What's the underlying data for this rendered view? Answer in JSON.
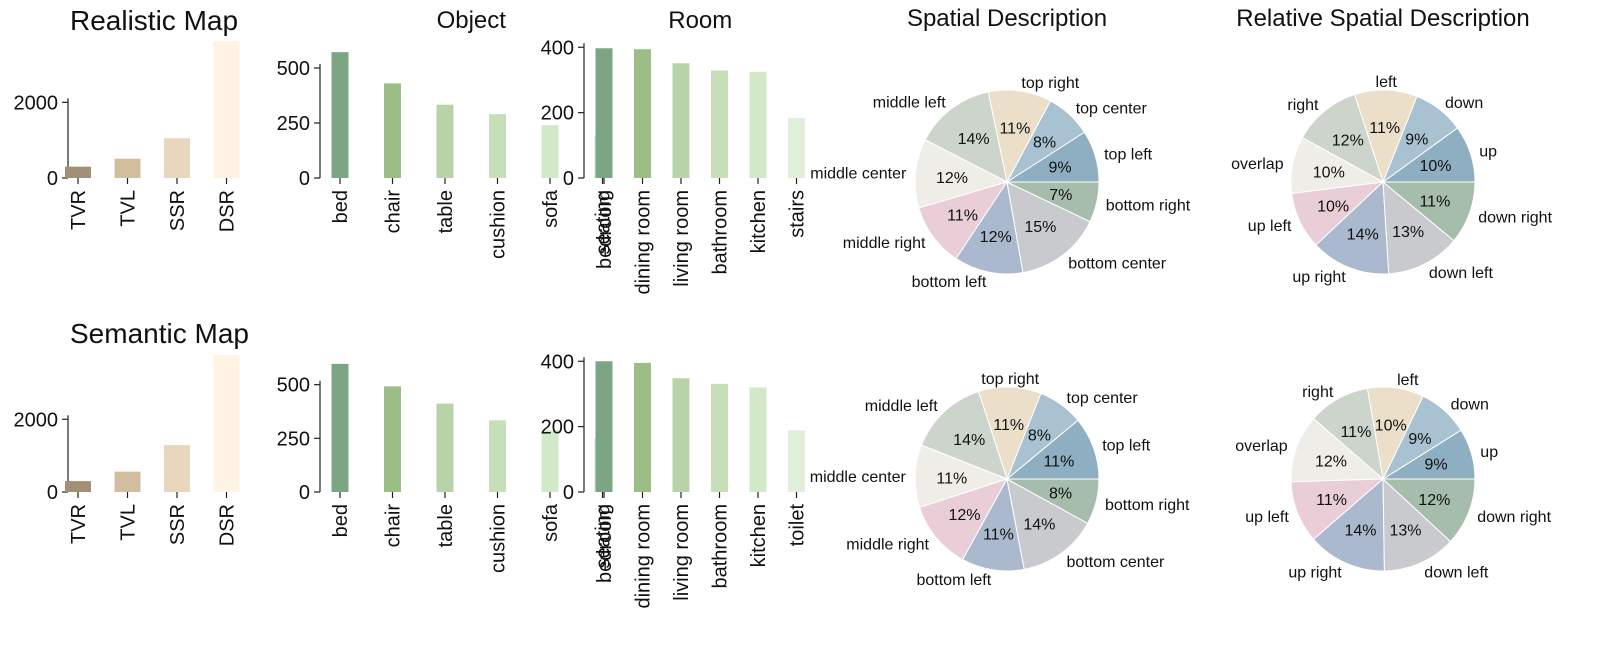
{
  "colors": {
    "group_bars": [
      "#a38f76",
      "#d2bd9e",
      "#e8d6bd",
      "#fff3e3"
    ],
    "green_bars": [
      "#7ba583",
      "#9bbd86",
      "#b9d3a8",
      "#c7dfb9",
      "#d3e8c7",
      "#e1eed9"
    ],
    "pie": {
      "top left": "#8eafc2",
      "top center": "#a9c2d1",
      "top right": "#ecdfca",
      "middle left": "#ccd4cc",
      "middle center": "#efede7",
      "middle right": "#e9ced7",
      "bottom left": "#abb9cf",
      "bottom center": "#c9cacd",
      "bottom right": "#a7bdab",
      "up": "#8eafc2",
      "down": "#a9c2d1",
      "left": "#ecdfca",
      "right": "#ccd4cc",
      "overlap": "#efede7",
      "up left": "#e9ced7",
      "up right": "#abb9cf",
      "down left": "#c9cacd",
      "down right": "#a7bdab"
    }
  },
  "chart_data": [
    {
      "type": "bar",
      "row": 0,
      "col": 0,
      "title": "Realistic Map",
      "categories": [
        "TVR",
        "TVL",
        "SSR",
        "DSR"
      ],
      "values": [
        300,
        510,
        1050,
        3620
      ],
      "ylim": [
        0,
        3700
      ],
      "yticks": [
        0,
        2000
      ],
      "grid": false
    },
    {
      "type": "bar",
      "row": 0,
      "col": 1,
      "title": "Object",
      "categories": [
        "bed",
        "chair",
        "table",
        "cushion",
        "sofa",
        "seating"
      ],
      "values": [
        572,
        430,
        333,
        290,
        240,
        192
      ],
      "ylim": [
        0,
        600
      ],
      "yticks": [
        0,
        250,
        500
      ],
      "grid": false
    },
    {
      "type": "bar",
      "row": 0,
      "col": 2,
      "title": "Room",
      "categories": [
        "bedroom",
        "dining room",
        "living room",
        "bathroom",
        "kitchen",
        "stairs"
      ],
      "values": [
        397,
        394,
        351,
        329,
        325,
        183
      ],
      "ylim": [
        0,
        410
      ],
      "yticks": [
        0,
        200,
        400
      ],
      "grid": false
    },
    {
      "type": "pie",
      "row": 0,
      "col": 3,
      "title": "Spatial Description",
      "labels": [
        "top left",
        "top center",
        "top right",
        "middle left",
        "middle center",
        "middle right",
        "bottom left",
        "bottom center",
        "bottom right"
      ],
      "values": [
        9,
        8,
        11,
        14,
        12,
        11,
        12,
        15,
        7
      ]
    },
    {
      "type": "pie",
      "row": 0,
      "col": 4,
      "title": "Relative Spatial Description",
      "labels": [
        "up",
        "down",
        "left",
        "right",
        "overlap",
        "up left",
        "up right",
        "down left",
        "down right"
      ],
      "values": [
        10,
        9,
        11,
        12,
        10,
        10,
        14,
        13,
        11
      ]
    },
    {
      "type": "bar",
      "row": 1,
      "col": 0,
      "title": "Semantic Map",
      "categories": [
        "TVR",
        "TVL",
        "SSR",
        "DSR"
      ],
      "values": [
        300,
        560,
        1290,
        3770
      ],
      "ylim": [
        0,
        3850
      ],
      "yticks": [
        0,
        2000
      ],
      "grid": false
    },
    {
      "type": "bar",
      "row": 1,
      "col": 1,
      "title": "",
      "categories": [
        "bed",
        "chair",
        "table",
        "cushion",
        "sofa",
        "seating"
      ],
      "values": [
        597,
        492,
        412,
        334,
        288,
        252
      ],
      "ylim": [
        0,
        615
      ],
      "yticks": [
        0,
        250,
        500
      ],
      "grid": false
    },
    {
      "type": "bar",
      "row": 1,
      "col": 2,
      "title": "",
      "categories": [
        "bedroom",
        "dining room",
        "living room",
        "bathroom",
        "kitchen",
        "toilet"
      ],
      "values": [
        400,
        395,
        348,
        331,
        320,
        188
      ],
      "ylim": [
        0,
        410
      ],
      "yticks": [
        0,
        200,
        400
      ],
      "grid": false
    },
    {
      "type": "pie",
      "row": 1,
      "col": 3,
      "title": "",
      "labels": [
        "top left",
        "top center",
        "top right",
        "middle left",
        "middle center",
        "middle right",
        "bottom left",
        "bottom center",
        "bottom right"
      ],
      "values": [
        11,
        8,
        11,
        14,
        11,
        12,
        11,
        14,
        8
      ]
    },
    {
      "type": "pie",
      "row": 1,
      "col": 4,
      "title": "",
      "labels": [
        "up",
        "down",
        "left",
        "right",
        "overlap",
        "up left",
        "up right",
        "down left",
        "down right"
      ],
      "values": [
        9,
        9,
        10,
        11,
        12,
        11,
        14,
        13,
        12
      ]
    }
  ]
}
